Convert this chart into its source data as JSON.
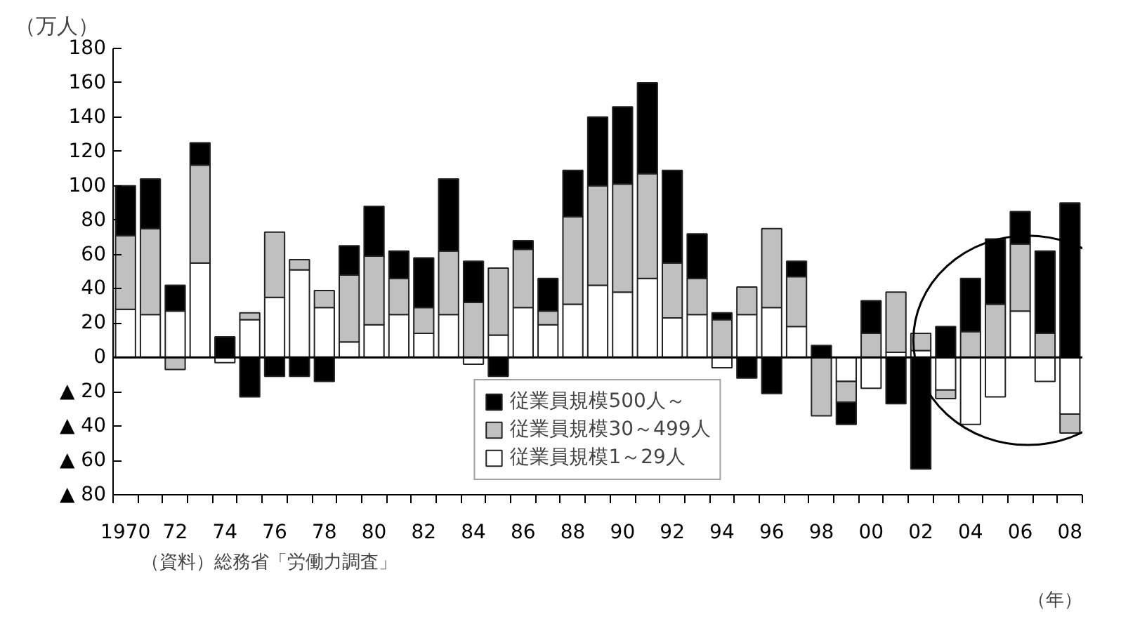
{
  "chart_data": {
    "type": "bar",
    "stacked": true,
    "ylabel": "（万人）",
    "xlabel": "（年）",
    "annotations": [
      "（資料）総務省「労働力調査」"
    ],
    "categories": [
      "1970",
      null,
      "72",
      null,
      "74",
      null,
      "76",
      null,
      "78",
      null,
      "80",
      null,
      "82",
      null,
      "84",
      null,
      "86",
      null,
      "88",
      null,
      "90",
      null,
      "92",
      null,
      "94",
      null,
      "96",
      null,
      "98",
      null,
      "00",
      null,
      "02",
      null,
      "04",
      null,
      "06",
      null,
      "08"
    ],
    "series": [
      {
        "name": "従業員規模1～29人",
        "color": "#ffffff",
        "values": [
          28,
          25,
          27,
          55,
          -3,
          22,
          35,
          51,
          29,
          9,
          19,
          25,
          14,
          25,
          -4,
          13,
          29,
          19,
          31,
          42,
          38,
          46,
          23,
          25,
          -6,
          25,
          29,
          18,
          0,
          -14,
          -18,
          3,
          4,
          -19,
          -39,
          -23,
          27,
          -14,
          -33
        ]
      },
      {
        "name": "従業員規模30～499人",
        "color": "#c0c0c0",
        "values": [
          43,
          50,
          -7,
          57,
          null,
          4,
          38,
          6,
          10,
          39,
          40,
          21,
          15,
          37,
          32,
          39,
          34,
          8,
          51,
          58,
          63,
          61,
          32,
          21,
          22,
          16,
          46,
          29,
          -34,
          -12,
          14,
          35,
          10,
          -5,
          15,
          31,
          39,
          14,
          -11
        ]
      },
      {
        "name": "従業員規模500人～",
        "color": "#000000",
        "values": [
          29,
          29,
          15,
          13,
          12,
          -23,
          -11,
          -11,
          -14,
          17,
          29,
          16,
          29,
          42,
          24,
          -11,
          5,
          19,
          27,
          40,
          45,
          53,
          54,
          26,
          4,
          -12,
          -21,
          9,
          7,
          -13,
          19,
          -27,
          -65,
          18,
          31,
          38,
          19,
          48,
          90
        ]
      }
    ],
    "ylim": [
      -80,
      180
    ],
    "yticks": [
      {
        "value": -80,
        "label": "▲ 80"
      },
      {
        "value": -60,
        "label": "▲ 60"
      },
      {
        "value": -40,
        "label": "▲ 40"
      },
      {
        "value": -20,
        "label": "▲ 20"
      },
      0,
      20,
      40,
      60,
      80,
      100,
      120,
      140,
      160,
      180
    ],
    "ref_lines": [
      {
        "axis": "y",
        "value": 0,
        "color": "#000000"
      }
    ],
    "grid": false,
    "legend": "bottom"
  }
}
